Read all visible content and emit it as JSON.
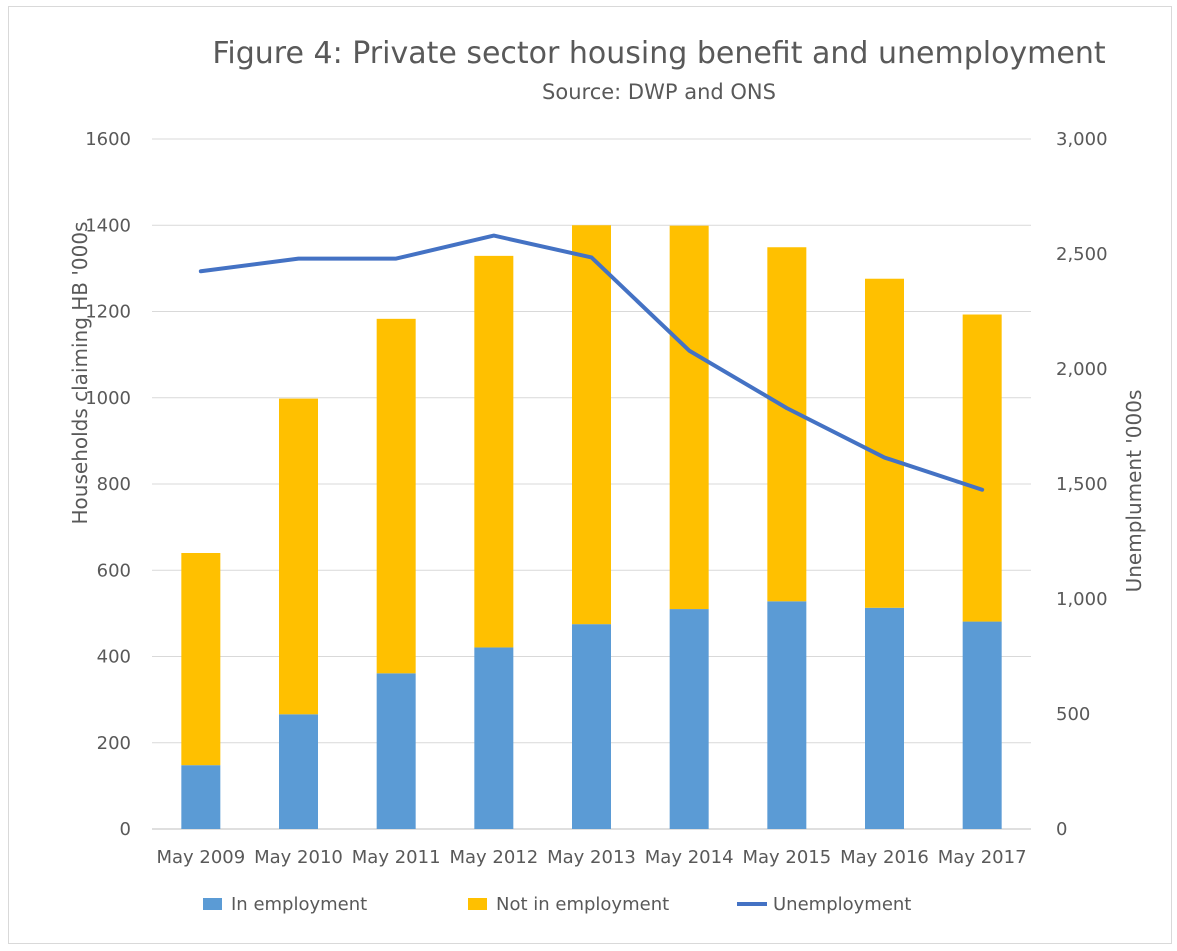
{
  "chart_data": {
    "type": "bar",
    "stacked": true,
    "title": "Figure 4: Private sector housing benefit and unemployment",
    "subtitle": "Source: DWP and ONS",
    "categories": [
      "May 2009",
      "May 2010",
      "May 2011",
      "May 2012",
      "May 2013",
      "May 2014",
      "May 2015",
      "May 2016",
      "May 2017"
    ],
    "series": [
      {
        "name": "In employment",
        "type": "bar",
        "axis": "left",
        "color": "#5b9bd5",
        "values": [
          148,
          266,
          361,
          421,
          475,
          510,
          528,
          513,
          481
        ]
      },
      {
        "name": "Not in employment",
        "type": "bar",
        "axis": "left",
        "color": "#ffc000",
        "values": [
          492,
          732,
          822,
          908,
          925,
          889,
          821,
          763,
          712
        ]
      },
      {
        "name": "Unemployment",
        "type": "line",
        "axis": "right",
        "color": "#4472c4",
        "values": [
          2425,
          2480,
          2480,
          2580,
          2485,
          2080,
          1830,
          1615,
          1475
        ]
      }
    ],
    "ylabel": "Households claiming HB '000s",
    "ylabel_right": "Unemplument '000s",
    "ylim": [
      0,
      1600
    ],
    "ylim_right": [
      0,
      3000
    ],
    "yticks": [
      "0",
      "200",
      "400",
      "600",
      "800",
      "1000",
      "1200",
      "1400",
      "1600"
    ],
    "yticks_right": [
      "0",
      "500",
      "1,000",
      "1,500",
      "2,000",
      "2,500",
      "3,000"
    ],
    "grid": true,
    "legend_position": "bottom"
  }
}
